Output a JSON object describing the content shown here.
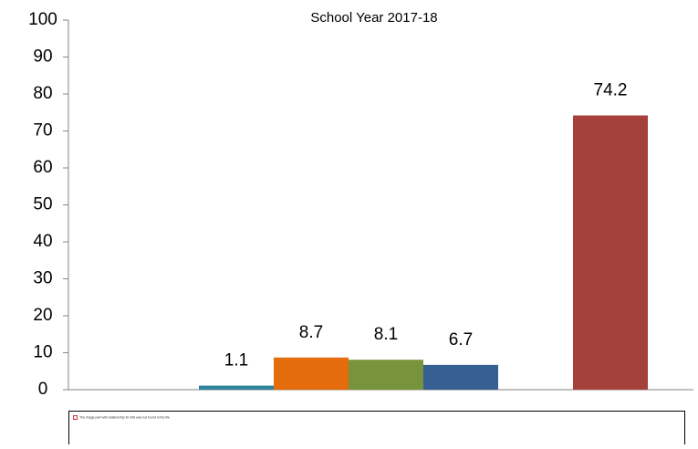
{
  "chart_data": {
    "type": "bar",
    "subtitle": "School Year 2017-18",
    "categories": [
      null,
      null,
      null,
      null,
      null
    ],
    "values": [
      1.1,
      8.7,
      8.1,
      6.7,
      74.2
    ],
    "colors": [
      "#31859c",
      "#e46c0a",
      "#77933c",
      "#376092",
      "#a5403a"
    ],
    "ylim": [
      0,
      100
    ],
    "yticks": [
      0,
      10,
      20,
      30,
      40,
      50,
      60,
      70,
      80,
      90,
      100
    ]
  },
  "image_placeholder": {
    "text": "The image part with relationship ID rId8 was not found in the file."
  }
}
